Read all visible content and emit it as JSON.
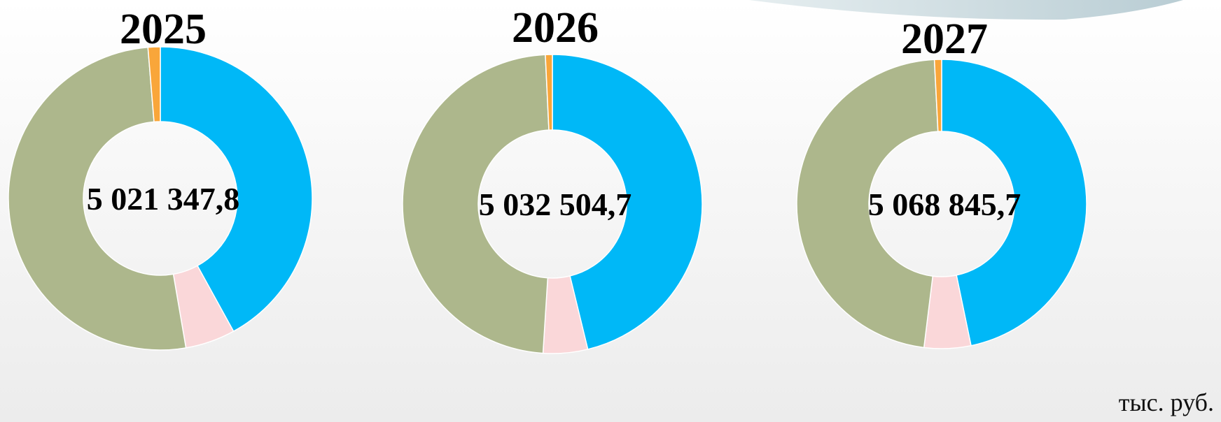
{
  "chart_data": [
    {
      "type": "donut",
      "title": "2025",
      "center_label": "5 021 347,8",
      "values": [
        42,
        5.3,
        51.4,
        1.3
      ],
      "colors": [
        "#00b8f7",
        "#fad7d9",
        "#adb78c",
        "#f9a63a"
      ]
    },
    {
      "type": "donut",
      "title": "2026",
      "center_label": "5 032 504,7",
      "values": [
        46.2,
        4.8,
        48.25,
        0.75
      ],
      "colors": [
        "#00b8f7",
        "#fad7d9",
        "#adb78c",
        "#f9a63a"
      ]
    },
    {
      "type": "donut",
      "title": "2027",
      "center_label": "5 068 845,7",
      "values": [
        46.75,
        5.2,
        47.25,
        0.8
      ],
      "colors": [
        "#00b8f7",
        "#fad7d9",
        "#adb78c",
        "#f9a63a"
      ]
    }
  ],
  "unit_note": "тыс. руб."
}
